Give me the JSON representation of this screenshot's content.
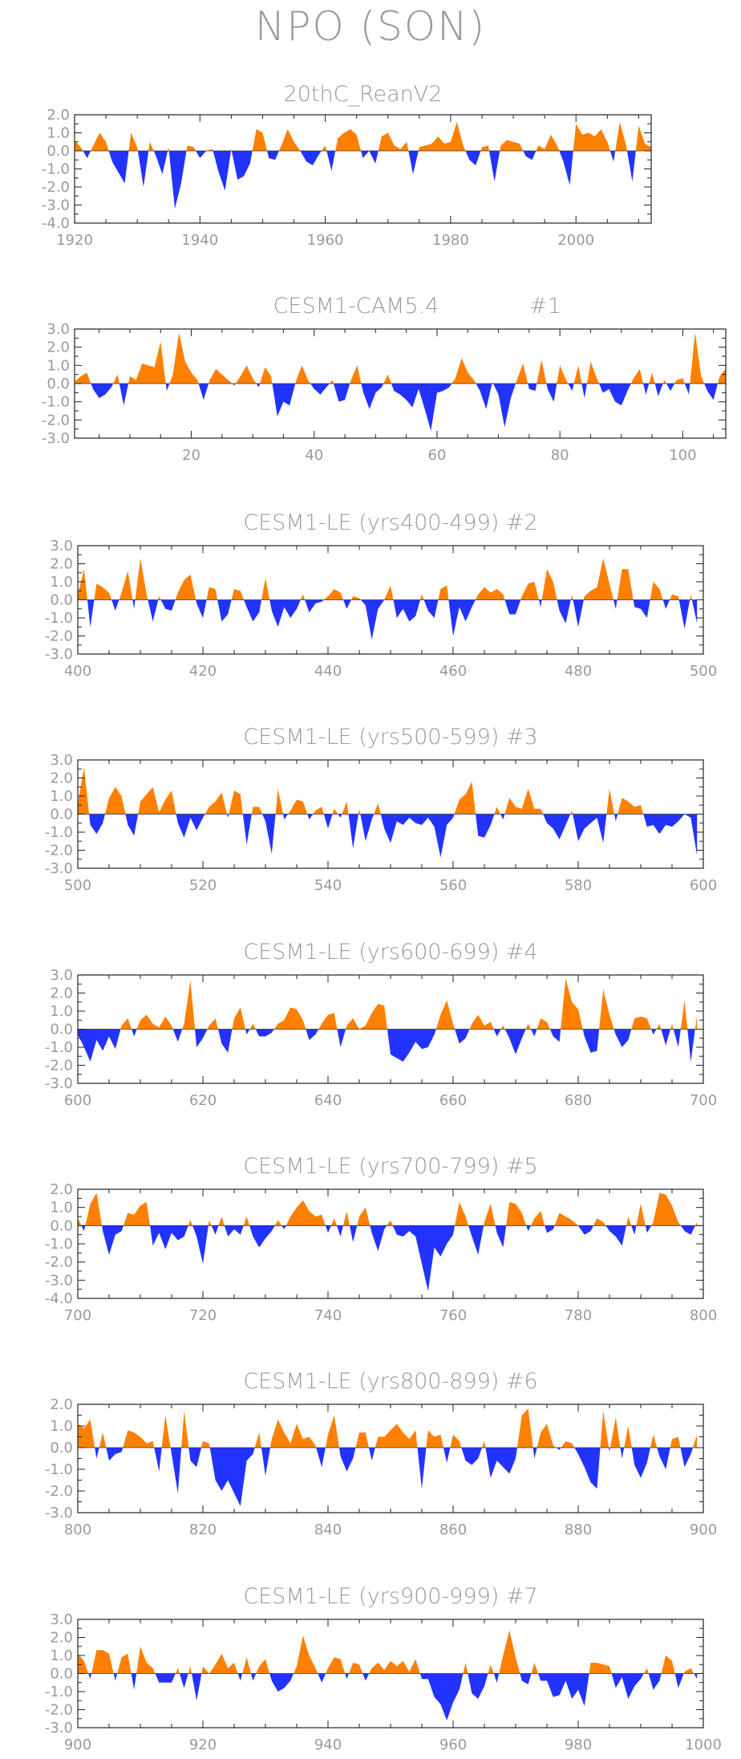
{
  "title": "NPO (SON)",
  "colors": {
    "positive": "#ff8000",
    "negative": "#2233ff",
    "text": "#9a9a9a",
    "frame": "#222222"
  },
  "chart_data": [
    {
      "type": "area",
      "title": "20thC_ReanV2",
      "xlim": [
        1920,
        2012
      ],
      "ylim": [
        -4.0,
        2.0
      ],
      "xticks": [
        1920,
        1940,
        1960,
        1980,
        2000
      ],
      "yticks": [
        "2.0",
        "1.0",
        "0.0",
        "-1.0",
        "-2.0",
        "-3.0",
        "-4.0"
      ],
      "x_start": 1920,
      "values": [
        0.6,
        0.2,
        -0.4,
        0.3,
        1.0,
        0.5,
        -0.6,
        -1.2,
        -1.8,
        1.0,
        0.2,
        -2.0,
        0.5,
        -0.3,
        -1.3,
        0.2,
        -3.2,
        -1.8,
        0.3,
        0.2,
        -0.4,
        0.0,
        0.1,
        -1.2,
        -2.2,
        0.1,
        -1.6,
        -1.4,
        -0.7,
        1.2,
        1.0,
        -0.4,
        -0.5,
        0.3,
        1.2,
        0.5,
        0.0,
        -0.6,
        -0.8,
        -0.2,
        0.3,
        -1.1,
        0.7,
        1.0,
        1.2,
        0.9,
        -0.4,
        0.0,
        -0.7,
        0.8,
        1.0,
        0.3,
        0.1,
        0.5,
        -1.3,
        0.2,
        0.3,
        0.4,
        0.8,
        0.4,
        0.5,
        1.6,
        0.3,
        -0.5,
        -0.8,
        0.2,
        0.3,
        -1.7,
        0.3,
        0.6,
        0.5,
        0.4,
        -0.3,
        -0.5,
        0.3,
        0.1,
        0.9,
        0.3,
        -0.6,
        -1.9,
        1.5,
        0.9,
        1.0,
        0.8,
        1.2,
        0.5,
        -0.6,
        1.6,
        0.3,
        -1.7,
        1.4,
        0.4,
        0.2
      ]
    },
    {
      "type": "area",
      "title": "CESM1-CAM5.4",
      "label": "#1",
      "xlim": [
        1,
        107
      ],
      "ylim": [
        -3.0,
        3.0
      ],
      "xticks": [
        20,
        40,
        60,
        80,
        100
      ],
      "yticks": [
        "3.0",
        "2.0",
        "1.0",
        "0.0",
        "-1.0",
        "-2.0",
        "-3.0"
      ],
      "x_start": 1,
      "values": [
        0.1,
        0.4,
        0.6,
        -0.3,
        -0.8,
        -0.6,
        -0.2,
        0.5,
        -1.2,
        0.4,
        0.2,
        1.1,
        1.0,
        0.9,
        2.3,
        -0.4,
        0.5,
        2.8,
        1.2,
        0.6,
        0.2,
        -0.9,
        0.2,
        0.8,
        0.5,
        0.2,
        -0.1,
        0.4,
        1.0,
        0.3,
        -0.2,
        0.9,
        0.4,
        -1.8,
        -1.0,
        -1.2,
        0.1,
        1.0,
        0.2,
        -0.3,
        -0.6,
        -0.2,
        0.2,
        -1.0,
        -0.9,
        0.2,
        1.0,
        -0.5,
        -1.4,
        -0.5,
        -0.2,
        0.5,
        -0.4,
        -0.6,
        -0.9,
        -1.3,
        -0.3,
        -1.4,
        -2.6,
        -0.5,
        -0.4,
        -0.2,
        0.3,
        1.4,
        0.6,
        0.2,
        -0.4,
        -1.4,
        0.1,
        -0.6,
        -2.4,
        -0.8,
        0.2,
        1.1,
        -0.3,
        -0.4,
        1.3,
        -0.3,
        -1.0,
        1.0,
        0.2,
        -0.4,
        1.0,
        -0.8,
        1.2,
        0.3,
        -0.5,
        -0.3,
        -1.0,
        -1.2,
        -0.4,
        0.3,
        0.8,
        -0.6,
        0.6,
        -0.7,
        0.2,
        -0.4,
        0.2,
        0.3,
        -0.6,
        2.8,
        0.4,
        -0.4,
        -0.9,
        0.4,
        0.8
      ]
    },
    {
      "type": "area",
      "title": "CESM1-LE (yrs400-499)",
      "label": "#2",
      "xlim": [
        400,
        500
      ],
      "ylim": [
        -3.0,
        3.0
      ],
      "xticks": [
        400,
        420,
        440,
        460,
        480,
        500
      ],
      "yticks": [
        "3.0",
        "2.0",
        "1.0",
        "0.0",
        "-1.0",
        "-2.0",
        "-3.0"
      ],
      "x_start": 400,
      "values": [
        0.3,
        1.7,
        -1.5,
        0.9,
        0.7,
        0.4,
        -0.6,
        0.4,
        1.6,
        -0.5,
        2.3,
        0.3,
        -1.2,
        0.2,
        -0.5,
        -0.6,
        0.4,
        1.1,
        1.4,
        -0.2,
        -1.0,
        0.7,
        0.6,
        -1.2,
        -0.8,
        0.6,
        0.5,
        -0.4,
        -1.2,
        -0.7,
        1.2,
        -0.6,
        -1.5,
        -0.4,
        -1.0,
        -0.5,
        0.3,
        -0.7,
        -0.2,
        -0.1,
        0.2,
        0.6,
        0.4,
        -0.5,
        0.2,
        0.1,
        -0.3,
        -2.2,
        -0.5,
        0.0,
        0.8,
        -1.0,
        -0.5,
        -1.2,
        -0.9,
        0.3,
        -0.6,
        -1.0,
        0.6,
        0.8,
        -2.0,
        -0.4,
        -1.2,
        -0.4,
        0.3,
        0.7,
        0.4,
        0.6,
        0.3,
        -0.8,
        -0.8,
        0.2,
        0.9,
        1.0,
        -0.4,
        1.7,
        1.0,
        -0.6,
        -1.3,
        0.3,
        -1.5,
        0.2,
        0.5,
        0.7,
        2.3,
        0.9,
        -0.5,
        1.7,
        1.7,
        -0.4,
        -0.5,
        -1.0,
        1.0,
        0.6,
        -0.5,
        0.3,
        0.2,
        -1.6,
        0.3,
        -1.3
      ]
    },
    {
      "type": "area",
      "title": "CESM1-LE (yrs500-599)",
      "label": "#3",
      "xlim": [
        500,
        600
      ],
      "ylim": [
        -3.0,
        3.0
      ],
      "xticks": [
        500,
        520,
        540,
        560,
        580,
        600
      ],
      "yticks": [
        "3.0",
        "2.0",
        "1.0",
        "0.0",
        "-1.0",
        "-2.0",
        "-3.0"
      ],
      "x_start": 500,
      "values": [
        0.6,
        2.6,
        -0.6,
        -1.1,
        -0.5,
        0.9,
        1.5,
        1.0,
        -0.6,
        -1.2,
        0.7,
        1.1,
        1.5,
        0.1,
        0.8,
        1.3,
        -0.5,
        -1.3,
        -0.2,
        -0.9,
        -0.2,
        0.4,
        0.7,
        1.2,
        -0.2,
        1.3,
        1.1,
        -1.7,
        0.4,
        0.4,
        -0.4,
        -2.2,
        1.4,
        -0.3,
        0.2,
        0.8,
        0.7,
        -0.3,
        0.2,
        0.4,
        -0.8,
        0.3,
        -0.2,
        0.7,
        -1.9,
        0.3,
        -1.5,
        -0.3,
        0.6,
        -0.8,
        -1.6,
        -0.4,
        -0.6,
        -0.2,
        -0.5,
        -0.6,
        -0.2,
        -0.7,
        -2.4,
        -0.6,
        -0.2,
        0.8,
        1.1,
        1.8,
        -1.2,
        -1.3,
        -0.6,
        0.4,
        -0.3,
        0.9,
        0.4,
        0.3,
        1.4,
        0.3,
        0.3,
        -0.5,
        -0.8,
        -1.4,
        -0.6,
        0.2,
        -1.5,
        -0.8,
        -0.5,
        -0.2,
        -1.6,
        1.4,
        -0.4,
        0.9,
        0.7,
        0.4,
        0.5,
        -0.7,
        -0.6,
        -1.1,
        -0.6,
        -0.7,
        -0.4,
        0.0,
        -0.2,
        -2.3
      ]
    },
    {
      "type": "area",
      "title": "CESM1-LE (yrs600-699)",
      "label": "#4",
      "xlim": [
        600,
        700
      ],
      "ylim": [
        -3.0,
        3.0
      ],
      "xticks": [
        600,
        620,
        640,
        660,
        680,
        700
      ],
      "yticks": [
        "3.0",
        "2.0",
        "1.0",
        "0.0",
        "-1.0",
        "-2.0",
        "-3.0"
      ],
      "x_start": 600,
      "values": [
        -0.3,
        -1.0,
        -1.8,
        -0.6,
        -1.2,
        -0.4,
        -1.1,
        0.2,
        0.6,
        -0.4,
        0.5,
        0.8,
        0.3,
        0.1,
        0.7,
        0.2,
        -0.7,
        0.3,
        2.7,
        -1.0,
        -0.5,
        0.2,
        0.6,
        -0.8,
        -1.3,
        0.6,
        1.2,
        -0.3,
        0.3,
        -0.4,
        -0.4,
        -0.2,
        0.3,
        0.5,
        1.2,
        1.1,
        0.5,
        -0.6,
        -0.3,
        0.3,
        0.8,
        0.9,
        -1.0,
        0.2,
        0.6,
        0.0,
        0.2,
        0.9,
        1.4,
        1.3,
        -1.4,
        -1.6,
        -1.8,
        -1.3,
        -0.7,
        -1.1,
        -1.0,
        -0.3,
        0.8,
        1.6,
        0.3,
        -0.8,
        -0.5,
        0.3,
        0.8,
        0.2,
        0.4,
        -0.4,
        0.2,
        -0.5,
        -1.4,
        -0.5,
        0.3,
        -0.4,
        0.6,
        0.4,
        -0.4,
        -0.7,
        2.8,
        1.5,
        1.1,
        -0.4,
        -1.3,
        -1.2,
        2.2,
        0.8,
        -0.3,
        -1.0,
        -0.6,
        0.6,
        0.7,
        0.6,
        -0.3,
        0.3,
        -0.9,
        0.3,
        -1.0,
        1.6,
        -1.8,
        0.8
      ]
    },
    {
      "type": "area",
      "title": "CESM1-LE (yrs700-799)",
      "label": "#5",
      "xlim": [
        700,
        800
      ],
      "ylim": [
        -4.0,
        2.0
      ],
      "xticks": [
        700,
        720,
        740,
        760,
        780,
        800
      ],
      "yticks": [
        "2.0",
        "1.0",
        "0.0",
        "-1.0",
        "-2.0",
        "-3.0",
        "-4.0"
      ],
      "x_start": 700,
      "values": [
        0.4,
        -0.3,
        1.2,
        1.8,
        -0.3,
        -1.6,
        -0.5,
        -0.3,
        0.7,
        0.6,
        1.1,
        1.3,
        -1.1,
        -0.4,
        -1.3,
        -0.4,
        -0.8,
        -0.6,
        0.3,
        -0.6,
        -2.1,
        0.3,
        -0.5,
        0.5,
        -0.6,
        -0.2,
        -0.5,
        0.5,
        -0.6,
        -1.2,
        -0.7,
        -0.3,
        0.3,
        -0.2,
        0.5,
        1.0,
        1.4,
        0.8,
        0.5,
        0.6,
        -0.4,
        0.4,
        -0.6,
        0.8,
        -0.9,
        0.5,
        1.0,
        -0.4,
        -1.4,
        -0.2,
        0.3,
        -0.5,
        -0.6,
        -0.3,
        -0.6,
        -2.1,
        -3.6,
        -1.2,
        -1.7,
        -1.0,
        -0.5,
        1.3,
        0.5,
        -0.6,
        -1.6,
        0.2,
        1.2,
        -0.4,
        -1.2,
        1.3,
        1.2,
        0.7,
        -0.3,
        0.4,
        0.8,
        -0.4,
        -0.2,
        0.7,
        0.5,
        0.3,
        0.0,
        -0.5,
        -0.3,
        0.4,
        0.2,
        -0.3,
        -0.6,
        -1.1,
        0.5,
        -0.5,
        1.2,
        -0.4,
        0.2,
        1.8,
        1.7,
        1.1,
        0.2,
        -0.3,
        -0.5,
        0.2
      ]
    },
    {
      "type": "area",
      "title": "CESM1-LE (yrs800-899)",
      "label": "#6",
      "xlim": [
        800,
        900
      ],
      "ylim": [
        -3.0,
        2.0
      ],
      "xticks": [
        800,
        820,
        840,
        860,
        880,
        900
      ],
      "yticks": [
        "2.0",
        "1.0",
        "0.0",
        "-1.0",
        "-2.0",
        "-3.0"
      ],
      "x_start": 800,
      "values": [
        1.1,
        0.9,
        1.3,
        -0.5,
        0.7,
        -0.6,
        -0.3,
        -0.2,
        0.8,
        0.7,
        0.5,
        0.2,
        0.3,
        -1.1,
        1.5,
        -0.3,
        -2.1,
        1.7,
        -0.6,
        -0.9,
        0.3,
        0.2,
        -1.5,
        -2.0,
        -1.5,
        -2.1,
        -2.7,
        -0.6,
        -0.3,
        0.7,
        -1.3,
        0.4,
        1.3,
        0.7,
        0.2,
        1.1,
        0.4,
        0.5,
        0.1,
        -0.9,
        0.6,
        1.5,
        -0.4,
        -1.1,
        -0.5,
        0.7,
        0.7,
        -0.6,
        0.5,
        0.5,
        0.8,
        1.1,
        0.7,
        0.4,
        0.8,
        -1.9,
        0.8,
        0.5,
        0.6,
        -0.7,
        0.6,
        0.3,
        -0.6,
        -0.8,
        -0.5,
        0.3,
        -1.4,
        -0.6,
        -0.9,
        -1.2,
        -0.5,
        1.5,
        1.8,
        -0.5,
        0.7,
        1.1,
        0.1,
        -0.1,
        0.3,
        0.2,
        -0.3,
        -0.9,
        -1.6,
        -1.9,
        1.7,
        -0.2,
        1.4,
        -0.5,
        1.0,
        -0.8,
        -1.4,
        -0.7,
        0.6,
        -0.4,
        -1.0,
        0.4,
        0.5,
        -0.9,
        -0.3,
        0.6
      ]
    },
    {
      "type": "area",
      "title": "CESM1-LE (yrs900-999)",
      "label": "#7",
      "xlim": [
        900,
        1000
      ],
      "ylim": [
        -3.0,
        3.0
      ],
      "xticks": [
        900,
        920,
        940,
        960,
        980,
        1000
      ],
      "yticks": [
        "3.0",
        "2.0",
        "1.0",
        "0.0",
        "-1.0",
        "-2.0",
        "-3.0"
      ],
      "x_start": 900,
      "values": [
        1.1,
        0.7,
        -0.3,
        1.3,
        1.3,
        1.1,
        -0.4,
        0.9,
        1.1,
        -0.9,
        1.5,
        0.6,
        0.3,
        -0.5,
        -0.5,
        -0.5,
        0.3,
        -0.8,
        0.4,
        -1.5,
        0.4,
        0.0,
        0.5,
        1.1,
        0.3,
        0.6,
        -0.4,
        0.9,
        -0.4,
        0.4,
        0.8,
        -0.4,
        -1.0,
        -0.8,
        -0.4,
        0.4,
        2.1,
        1.0,
        0.3,
        -0.5,
        0.3,
        0.9,
        0.8,
        -0.3,
        0.6,
        0.5,
        -0.4,
        0.3,
        0.6,
        0.2,
        0.7,
        0.4,
        0.7,
        0.1,
        0.8,
        -0.3,
        -0.3,
        -1.3,
        -1.7,
        -2.6,
        -1.6,
        -0.9,
        0.6,
        -1.1,
        -1.4,
        -0.7,
        0.5,
        -0.5,
        1.0,
        2.4,
        0.9,
        -0.4,
        -0.6,
        0.6,
        -0.4,
        -0.4,
        -1.3,
        -1.2,
        -0.4,
        -1.4,
        -0.9,
        -1.8,
        0.6,
        0.6,
        0.5,
        0.4,
        -0.8,
        -0.2,
        -1.4,
        -0.7,
        -0.3,
        0.3,
        -0.9,
        -0.4,
        1.0,
        0.7,
        -0.8,
        0.1,
        0.3,
        -0.3
      ]
    }
  ]
}
